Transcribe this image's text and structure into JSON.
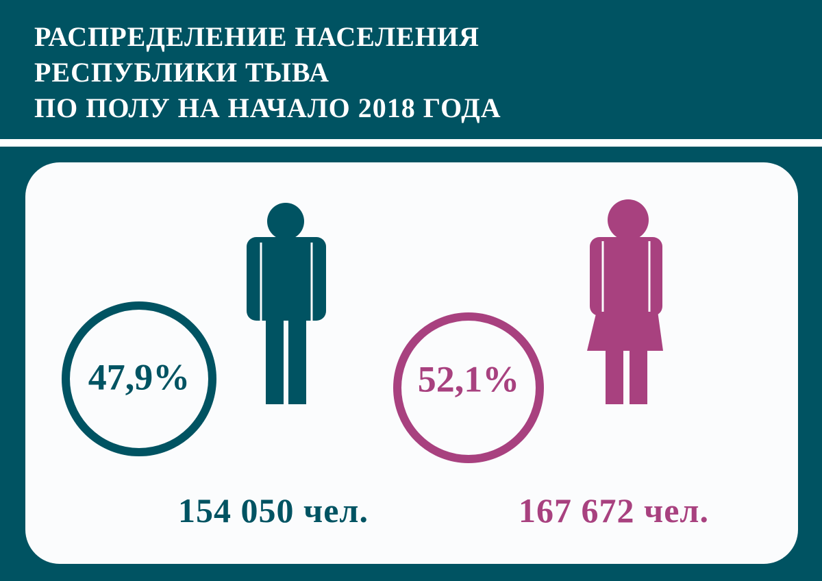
{
  "header": {
    "title": [
      "РАСПРЕДЕЛЕНИЕ НАСЕЛЕНИЯ",
      "РЕСПУБЛИКИ ТЫВА",
      "ПО ПОЛУ НА НАЧАЛО 2018 ГОДА"
    ]
  },
  "groups": [
    {
      "percent": "47,9%",
      "count": "154 050 чел."
    },
    {
      "percent": "52,1%",
      "count": "167 672 чел."
    }
  ]
}
